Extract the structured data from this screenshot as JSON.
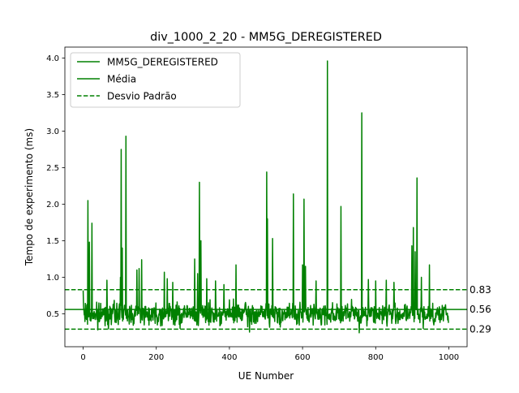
{
  "chart_data": {
    "type": "line",
    "title": "div_1000_2_20 - MM5G_DEREGISTERED",
    "xlabel": "UE Number",
    "ylabel": "Tempo de experimento (ms)",
    "xlim": [
      -50,
      1050
    ],
    "ylim": [
      0.05,
      4.15
    ],
    "xticks": [
      "0",
      "200",
      "400",
      "600",
      "800",
      "1000"
    ],
    "yticks": [
      "0.5",
      "1.0",
      "1.5",
      "2.0",
      "2.5",
      "3.0",
      "3.5",
      "4.0"
    ],
    "grid": false,
    "legend_position": "upper-left",
    "colors": {
      "series": "#008000"
    },
    "series": [
      {
        "name": "MM5G_DEREGISTERED",
        "style": "solid",
        "n_points": 1000,
        "baseline_min": 0.28,
        "baseline_max": 0.72,
        "spikes": [
          {
            "x": 0,
            "y": 0.82
          },
          {
            "x": 13,
            "y": 2.05
          },
          {
            "x": 17,
            "y": 1.48
          },
          {
            "x": 24,
            "y": 1.74
          },
          {
            "x": 65,
            "y": 0.96
          },
          {
            "x": 102,
            "y": 1.0
          },
          {
            "x": 104,
            "y": 2.75
          },
          {
            "x": 107,
            "y": 1.4
          },
          {
            "x": 117,
            "y": 2.93
          },
          {
            "x": 147,
            "y": 1.1
          },
          {
            "x": 153,
            "y": 1.12
          },
          {
            "x": 160,
            "y": 1.24
          },
          {
            "x": 222,
            "y": 1.07
          },
          {
            "x": 230,
            "y": 0.98
          },
          {
            "x": 245,
            "y": 0.93
          },
          {
            "x": 305,
            "y": 1.25
          },
          {
            "x": 313,
            "y": 1.05
          },
          {
            "x": 318,
            "y": 2.3
          },
          {
            "x": 322,
            "y": 1.5
          },
          {
            "x": 338,
            "y": 0.98
          },
          {
            "x": 362,
            "y": 0.95
          },
          {
            "x": 385,
            "y": 0.9
          },
          {
            "x": 418,
            "y": 1.17
          },
          {
            "x": 502,
            "y": 2.44
          },
          {
            "x": 504,
            "y": 1.8
          },
          {
            "x": 518,
            "y": 1.53
          },
          {
            "x": 575,
            "y": 2.14
          },
          {
            "x": 600,
            "y": 1.17
          },
          {
            "x": 604,
            "y": 2.07
          },
          {
            "x": 608,
            "y": 1.15
          },
          {
            "x": 637,
            "y": 0.95
          },
          {
            "x": 668,
            "y": 3.96
          },
          {
            "x": 705,
            "y": 1.97
          },
          {
            "x": 762,
            "y": 3.25
          },
          {
            "x": 780,
            "y": 0.97
          },
          {
            "x": 800,
            "y": 0.95
          },
          {
            "x": 829,
            "y": 0.96
          },
          {
            "x": 850,
            "y": 0.93
          },
          {
            "x": 899,
            "y": 1.43
          },
          {
            "x": 903,
            "y": 1.68
          },
          {
            "x": 908,
            "y": 1.35
          },
          {
            "x": 913,
            "y": 2.36
          },
          {
            "x": 925,
            "y": 1.0
          },
          {
            "x": 947,
            "y": 1.17
          },
          {
            "x": 40,
            "y": 0.28
          },
          {
            "x": 265,
            "y": 0.3
          },
          {
            "x": 455,
            "y": 0.25
          },
          {
            "x": 755,
            "y": 0.24
          },
          {
            "x": 930,
            "y": 0.3
          }
        ]
      },
      {
        "name": "Média",
        "style": "solid",
        "value": 0.56
      },
      {
        "name": "Desvio Padrão",
        "style": "dashed",
        "values": [
          0.83,
          0.29
        ]
      }
    ],
    "annotations": [
      {
        "label": "0.83",
        "y": 0.83
      },
      {
        "label": "0.56",
        "y": 0.56
      },
      {
        "label": "0.29",
        "y": 0.29
      }
    ]
  }
}
